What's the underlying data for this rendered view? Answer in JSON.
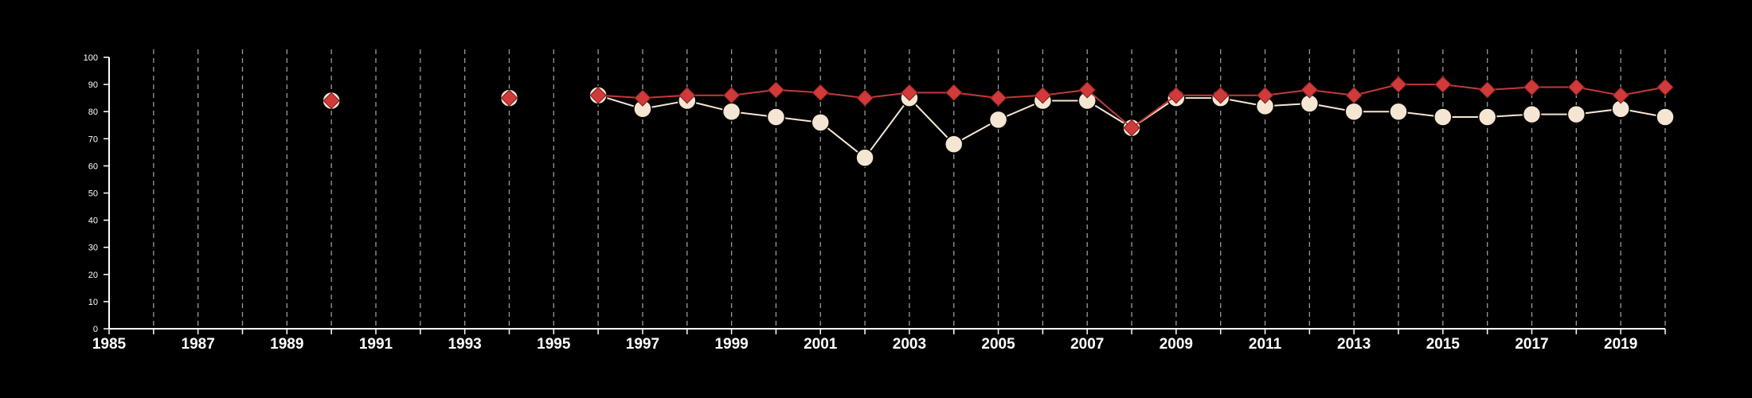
{
  "colors": {
    "background": "#000000",
    "axis": "#ffffff",
    "grid": "#9a9a9a",
    "series_1_fill": "#f5e6d3",
    "series_1_line": "#f5e6d3",
    "series_2_fill": "#d03a3a",
    "series_2_line": "#c23a3a"
  },
  "chart_data": {
    "type": "line",
    "title": "",
    "xlabel": "",
    "ylabel": "",
    "xlim": [
      1985,
      2020
    ],
    "ylim": [
      0,
      100
    ],
    "x_ticks": [
      1985,
      1986,
      1987,
      1988,
      1989,
      1990,
      1991,
      1992,
      1993,
      1994,
      1995,
      1996,
      1997,
      1998,
      1999,
      2000,
      2001,
      2002,
      2003,
      2004,
      2005,
      2006,
      2007,
      2008,
      2009,
      2010,
      2011,
      2012,
      2013,
      2014,
      2015,
      2016,
      2017,
      2018,
      2019,
      2020
    ],
    "x_tick_labels": [
      "1985",
      "1987",
      "1989",
      "1991",
      "1993",
      "1995",
      "1997",
      "1999",
      "2001",
      "2003",
      "2005",
      "2007",
      "2009",
      "2011",
      "2013",
      "2015",
      "2017",
      "2019"
    ],
    "y_ticks": [
      0,
      10,
      20,
      30,
      40,
      50,
      60,
      70,
      80,
      90,
      100
    ],
    "y_tick_labels": [
      "0",
      "10",
      "20",
      "30",
      "40",
      "50",
      "60",
      "70",
      "80",
      "90",
      "100"
    ],
    "vertical_grid": true,
    "vertical_grid_years": [
      1986,
      1987,
      1988,
      1989,
      1990,
      1991,
      1992,
      1993,
      1994,
      1995,
      1996,
      1997,
      1998,
      1999,
      2000,
      2001,
      2002,
      2003,
      2004,
      2005,
      2006,
      2007,
      2008,
      2009,
      2010,
      2011,
      2012,
      2013,
      2014,
      2015,
      2016,
      2017,
      2018,
      2019,
      2020
    ],
    "series": [
      {
        "marker": "circle",
        "line": "connected",
        "points": [
          {
            "x": 1990,
            "y": 84
          },
          {
            "x": 1994,
            "y": 85
          },
          {
            "x": 1996,
            "y": 86
          },
          {
            "x": 1997,
            "y": 81
          },
          {
            "x": 1998,
            "y": 84
          },
          {
            "x": 1999,
            "y": 80
          },
          {
            "x": 2000,
            "y": 78
          },
          {
            "x": 2001,
            "y": 76
          },
          {
            "x": 2002,
            "y": 63
          },
          {
            "x": 2003,
            "y": 85
          },
          {
            "x": 2004,
            "y": 68
          },
          {
            "x": 2005,
            "y": 77
          },
          {
            "x": 2006,
            "y": 84
          },
          {
            "x": 2007,
            "y": 84
          },
          {
            "x": 2008,
            "y": 74
          },
          {
            "x": 2009,
            "y": 85
          },
          {
            "x": 2010,
            "y": 85
          },
          {
            "x": 2011,
            "y": 82
          },
          {
            "x": 2012,
            "y": 83
          },
          {
            "x": 2013,
            "y": 80
          },
          {
            "x": 2014,
            "y": 80
          },
          {
            "x": 2015,
            "y": 78
          },
          {
            "x": 2016,
            "y": 78
          },
          {
            "x": 2017,
            "y": 79
          },
          {
            "x": 2018,
            "y": 79
          },
          {
            "x": 2019,
            "y": 81
          },
          {
            "x": 2020,
            "y": 78
          }
        ]
      },
      {
        "marker": "diamond",
        "line": "connected",
        "points": [
          {
            "x": 1990,
            "y": 84
          },
          {
            "x": 1994,
            "y": 85
          },
          {
            "x": 1996,
            "y": 86
          },
          {
            "x": 1997,
            "y": 85
          },
          {
            "x": 1998,
            "y": 86
          },
          {
            "x": 1999,
            "y": 86
          },
          {
            "x": 2000,
            "y": 88
          },
          {
            "x": 2001,
            "y": 87
          },
          {
            "x": 2002,
            "y": 85
          },
          {
            "x": 2003,
            "y": 87
          },
          {
            "x": 2004,
            "y": 87
          },
          {
            "x": 2005,
            "y": 85
          },
          {
            "x": 2006,
            "y": 86
          },
          {
            "x": 2007,
            "y": 88
          },
          {
            "x": 2008,
            "y": 74
          },
          {
            "x": 2009,
            "y": 86
          },
          {
            "x": 2010,
            "y": 86
          },
          {
            "x": 2011,
            "y": 86
          },
          {
            "x": 2012,
            "y": 88
          },
          {
            "x": 2013,
            "y": 86
          },
          {
            "x": 2014,
            "y": 90
          },
          {
            "x": 2015,
            "y": 90
          },
          {
            "x": 2016,
            "y": 88
          },
          {
            "x": 2017,
            "y": 89
          },
          {
            "x": 2018,
            "y": 89
          },
          {
            "x": 2019,
            "y": 86
          },
          {
            "x": 2020,
            "y": 89
          }
        ]
      }
    ]
  }
}
